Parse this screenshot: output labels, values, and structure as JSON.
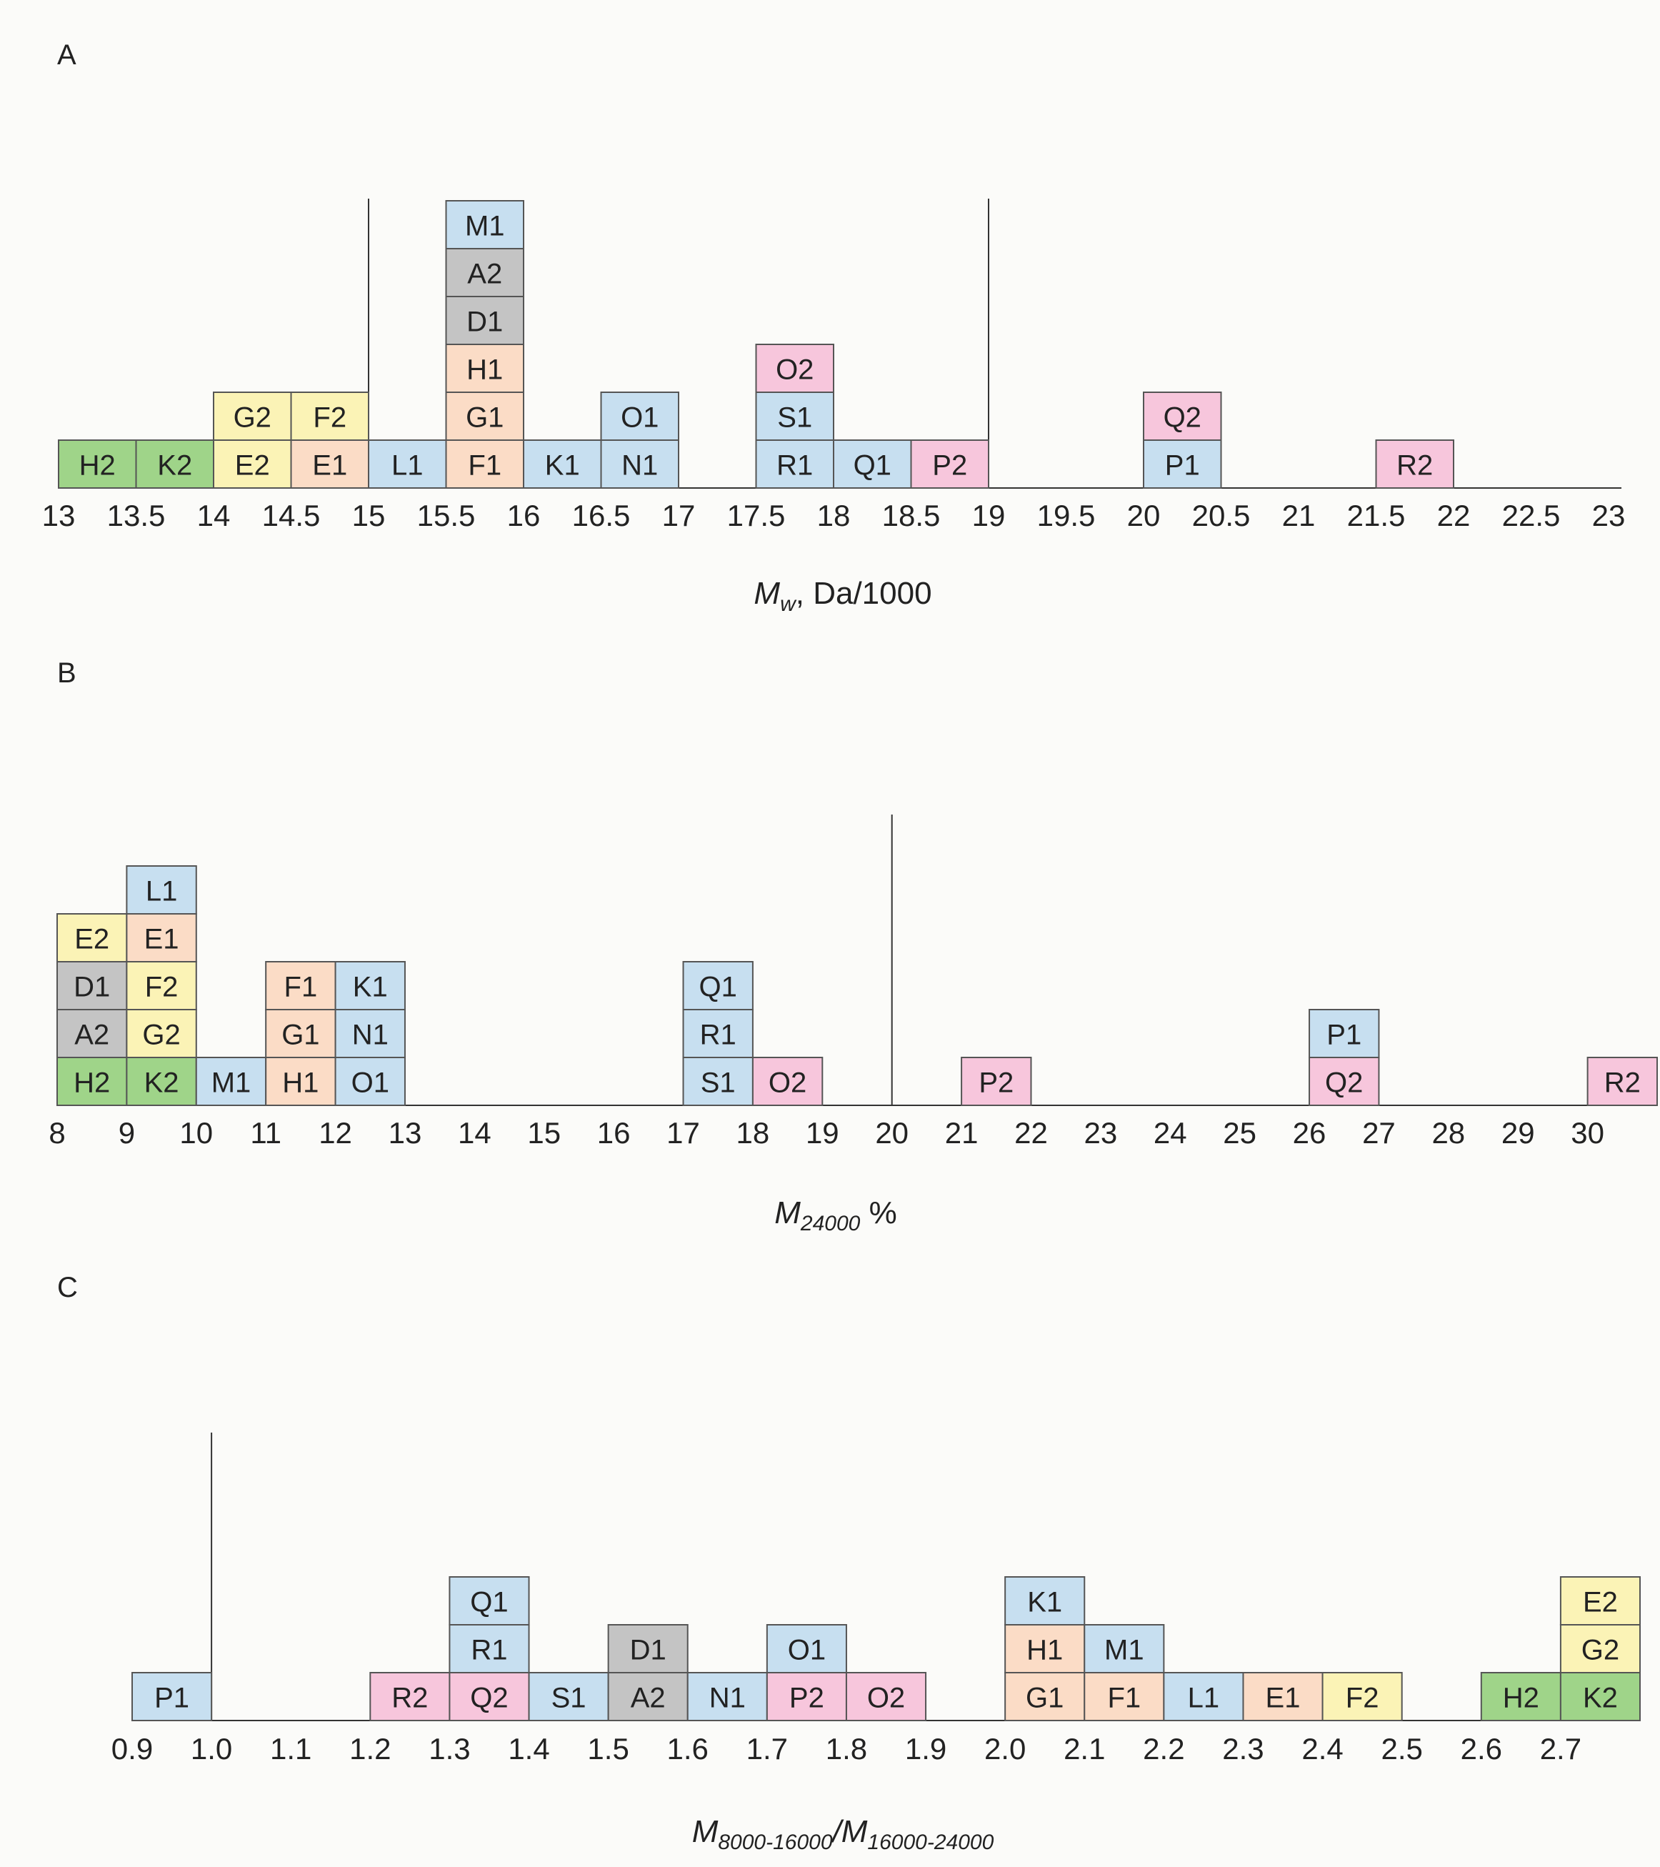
{
  "colors": {
    "blue": "#c7dff0",
    "gray": "#c4c4c4",
    "orange": "#fbdcc6",
    "yellow": "#fbf3b6",
    "pink": "#f7c6dc",
    "green": "#9fd489"
  },
  "chart_data": [
    {
      "panel": "A",
      "type": "histogram",
      "xlabel_main": "M",
      "xlabel_sub": "w",
      "xlabel_rest": ", Da/1000",
      "xlim": [
        13,
        23
      ],
      "bin_width": 0.5,
      "ticks": [
        {
          "value": 13,
          "label": "13"
        },
        {
          "value": 13.5,
          "label": "13.5"
        },
        {
          "value": 14,
          "label": "14"
        },
        {
          "value": 14.5,
          "label": "14.5"
        },
        {
          "value": 15,
          "label": "15"
        },
        {
          "value": 15.5,
          "label": "15.5"
        },
        {
          "value": 16,
          "label": "16"
        },
        {
          "value": 16.5,
          "label": "16.5"
        },
        {
          "value": 17,
          "label": "17"
        },
        {
          "value": 17.5,
          "label": "17.5"
        },
        {
          "value": 18,
          "label": "18"
        },
        {
          "value": 18.5,
          "label": "18.5"
        },
        {
          "value": 19,
          "label": "19"
        },
        {
          "value": 19.5,
          "label": "19.5"
        },
        {
          "value": 20,
          "label": "20"
        },
        {
          "value": 20.5,
          "label": "20.5"
        },
        {
          "value": 21,
          "label": "21"
        },
        {
          "value": 21.5,
          "label": "21.5"
        },
        {
          "value": 22,
          "label": "22"
        },
        {
          "value": 22.5,
          "label": "22.5"
        },
        {
          "value": 23,
          "label": "23"
        }
      ],
      "reference_lines": [
        15,
        19
      ],
      "bins": [
        {
          "start": 13.0,
          "items": [
            {
              "label": "H2",
              "color": "green"
            }
          ]
        },
        {
          "start": 13.5,
          "items": [
            {
              "label": "K2",
              "color": "green"
            }
          ]
        },
        {
          "start": 14.0,
          "items": [
            {
              "label": "E2",
              "color": "yellow"
            },
            {
              "label": "G2",
              "color": "yellow"
            }
          ]
        },
        {
          "start": 14.5,
          "items": [
            {
              "label": "E1",
              "color": "orange"
            },
            {
              "label": "F2",
              "color": "yellow"
            }
          ]
        },
        {
          "start": 15.0,
          "items": [
            {
              "label": "L1",
              "color": "blue"
            }
          ]
        },
        {
          "start": 15.5,
          "items": [
            {
              "label": "F1",
              "color": "orange"
            },
            {
              "label": "G1",
              "color": "orange"
            },
            {
              "label": "H1",
              "color": "orange"
            },
            {
              "label": "D1",
              "color": "gray"
            },
            {
              "label": "A2",
              "color": "gray"
            },
            {
              "label": "M1",
              "color": "blue"
            }
          ]
        },
        {
          "start": 16.0,
          "items": [
            {
              "label": "K1",
              "color": "blue"
            }
          ]
        },
        {
          "start": 16.5,
          "items": [
            {
              "label": "N1",
              "color": "blue"
            },
            {
              "label": "O1",
              "color": "blue"
            }
          ]
        },
        {
          "start": 17.5,
          "items": [
            {
              "label": "R1",
              "color": "blue"
            },
            {
              "label": "S1",
              "color": "blue"
            },
            {
              "label": "O2",
              "color": "pink"
            }
          ]
        },
        {
          "start": 18.0,
          "items": [
            {
              "label": "Q1",
              "color": "blue"
            }
          ]
        },
        {
          "start": 18.5,
          "items": [
            {
              "label": "P2",
              "color": "pink"
            }
          ]
        },
        {
          "start": 20.0,
          "items": [
            {
              "label": "P1",
              "color": "blue"
            },
            {
              "label": "Q2",
              "color": "pink"
            }
          ]
        },
        {
          "start": 21.5,
          "items": [
            {
              "label": "R2",
              "color": "pink"
            }
          ]
        }
      ]
    },
    {
      "panel": "B",
      "type": "histogram",
      "xlabel_main": "M",
      "xlabel_sub": "24000",
      "xlabel_rest": " %",
      "xlim": [
        8,
        31
      ],
      "bin_width": 1,
      "ticks": [
        {
          "value": 8,
          "label": "8"
        },
        {
          "value": 9,
          "label": "9"
        },
        {
          "value": 10,
          "label": "10"
        },
        {
          "value": 11,
          "label": "11"
        },
        {
          "value": 12,
          "label": "12"
        },
        {
          "value": 13,
          "label": "13"
        },
        {
          "value": 14,
          "label": "14"
        },
        {
          "value": 15,
          "label": "15"
        },
        {
          "value": 16,
          "label": "16"
        },
        {
          "value": 17,
          "label": "17"
        },
        {
          "value": 18,
          "label": "18"
        },
        {
          "value": 19,
          "label": "19"
        },
        {
          "value": 20,
          "label": "20"
        },
        {
          "value": 21,
          "label": "21"
        },
        {
          "value": 22,
          "label": "22"
        },
        {
          "value": 23,
          "label": "23"
        },
        {
          "value": 24,
          "label": "24"
        },
        {
          "value": 25,
          "label": "25"
        },
        {
          "value": 26,
          "label": "26"
        },
        {
          "value": 27,
          "label": "27"
        },
        {
          "value": 28,
          "label": "28"
        },
        {
          "value": 29,
          "label": "29"
        },
        {
          "value": 30,
          "label": "30"
        }
      ],
      "reference_lines": [
        20
      ],
      "bins": [
        {
          "start": 8,
          "items": [
            {
              "label": "H2",
              "color": "green"
            },
            {
              "label": "A2",
              "color": "gray"
            },
            {
              "label": "D1",
              "color": "gray"
            },
            {
              "label": "E2",
              "color": "yellow"
            }
          ]
        },
        {
          "start": 9,
          "items": [
            {
              "label": "K2",
              "color": "green"
            },
            {
              "label": "G2",
              "color": "yellow"
            },
            {
              "label": "F2",
              "color": "yellow"
            },
            {
              "label": "E1",
              "color": "orange"
            },
            {
              "label": "L1",
              "color": "blue"
            }
          ]
        },
        {
          "start": 10,
          "items": [
            {
              "label": "M1",
              "color": "blue"
            }
          ]
        },
        {
          "start": 11,
          "items": [
            {
              "label": "H1",
              "color": "orange"
            },
            {
              "label": "G1",
              "color": "orange"
            },
            {
              "label": "F1",
              "color": "orange"
            }
          ]
        },
        {
          "start": 12,
          "items": [
            {
              "label": "O1",
              "color": "blue"
            },
            {
              "label": "N1",
              "color": "blue"
            },
            {
              "label": "K1",
              "color": "blue"
            }
          ]
        },
        {
          "start": 17,
          "items": [
            {
              "label": "S1",
              "color": "blue"
            },
            {
              "label": "R1",
              "color": "blue"
            },
            {
              "label": "Q1",
              "color": "blue"
            }
          ]
        },
        {
          "start": 18,
          "items": [
            {
              "label": "O2",
              "color": "pink"
            }
          ]
        },
        {
          "start": 21,
          "items": [
            {
              "label": "P2",
              "color": "pink"
            }
          ]
        },
        {
          "start": 26,
          "items": [
            {
              "label": "Q2",
              "color": "pink"
            },
            {
              "label": "P1",
              "color": "blue"
            }
          ]
        },
        {
          "start": 30,
          "items": [
            {
              "label": "R2",
              "color": "pink"
            }
          ]
        }
      ]
    },
    {
      "panel": "C",
      "type": "histogram",
      "xlabel_main": "M",
      "xlabel_sub": "8000-16000",
      "xlabel_mid": "/M",
      "xlabel_sub2": "16000-24000",
      "xlim": [
        0.9,
        2.8
      ],
      "bin_width": 0.1,
      "ticks": [
        {
          "value": 0.9,
          "label": "0.9"
        },
        {
          "value": 1.0,
          "label": "1.0"
        },
        {
          "value": 1.1,
          "label": "1.1"
        },
        {
          "value": 1.2,
          "label": "1.2"
        },
        {
          "value": 1.3,
          "label": "1.3"
        },
        {
          "value": 1.4,
          "label": "1.4"
        },
        {
          "value": 1.5,
          "label": "1.5"
        },
        {
          "value": 1.6,
          "label": "1.6"
        },
        {
          "value": 1.7,
          "label": "1.7"
        },
        {
          "value": 1.8,
          "label": "1.8"
        },
        {
          "value": 1.9,
          "label": "1.9"
        },
        {
          "value": 2.0,
          "label": "2.0"
        },
        {
          "value": 2.1,
          "label": "2.1"
        },
        {
          "value": 2.2,
          "label": "2.2"
        },
        {
          "value": 2.3,
          "label": "2.3"
        },
        {
          "value": 2.4,
          "label": "2.4"
        },
        {
          "value": 2.5,
          "label": "2.5"
        },
        {
          "value": 2.6,
          "label": "2.6"
        },
        {
          "value": 2.7,
          "label": "2.7"
        }
      ],
      "reference_lines": [
        1.0
      ],
      "bins": [
        {
          "start": 0.9,
          "items": [
            {
              "label": "P1",
              "color": "blue"
            }
          ]
        },
        {
          "start": 1.2,
          "items": [
            {
              "label": "R2",
              "color": "pink"
            }
          ]
        },
        {
          "start": 1.3,
          "items": [
            {
              "label": "Q2",
              "color": "pink"
            },
            {
              "label": "R1",
              "color": "blue"
            },
            {
              "label": "Q1",
              "color": "blue"
            }
          ]
        },
        {
          "start": 1.4,
          "items": [
            {
              "label": "S1",
              "color": "blue"
            }
          ]
        },
        {
          "start": 1.5,
          "items": [
            {
              "label": "A2",
              "color": "gray"
            },
            {
              "label": "D1",
              "color": "gray"
            }
          ]
        },
        {
          "start": 1.6,
          "items": [
            {
              "label": "N1",
              "color": "blue"
            }
          ]
        },
        {
          "start": 1.7,
          "items": [
            {
              "label": "P2",
              "color": "pink"
            },
            {
              "label": "O1",
              "color": "blue"
            }
          ]
        },
        {
          "start": 1.8,
          "items": [
            {
              "label": "O2",
              "color": "pink"
            }
          ]
        },
        {
          "start": 2.0,
          "items": [
            {
              "label": "G1",
              "color": "orange"
            },
            {
              "label": "H1",
              "color": "orange"
            },
            {
              "label": "K1",
              "color": "blue"
            }
          ]
        },
        {
          "start": 2.1,
          "items": [
            {
              "label": "F1",
              "color": "orange"
            },
            {
              "label": "M1",
              "color": "blue"
            }
          ]
        },
        {
          "start": 2.2,
          "items": [
            {
              "label": "L1",
              "color": "blue"
            }
          ]
        },
        {
          "start": 2.3,
          "items": [
            {
              "label": "E1",
              "color": "orange"
            }
          ]
        },
        {
          "start": 2.4,
          "items": [
            {
              "label": "F2",
              "color": "yellow"
            }
          ]
        },
        {
          "start": 2.6,
          "items": [
            {
              "label": "H2",
              "color": "green"
            }
          ]
        },
        {
          "start": 2.7,
          "items": [
            {
              "label": "K2",
              "color": "green"
            },
            {
              "label": "G2",
              "color": "yellow"
            },
            {
              "label": "E2",
              "color": "yellow"
            }
          ]
        }
      ]
    }
  ]
}
